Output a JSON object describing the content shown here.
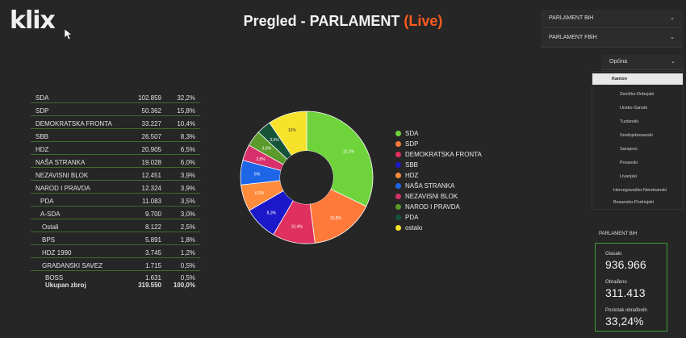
{
  "header": {
    "logo": "klix",
    "title_main": "Pregled - PARLAMENT ",
    "title_live": "(Live)"
  },
  "dropdowns": [
    {
      "label": "PARLAMENT BiH",
      "icon": "chevron-down-icon"
    },
    {
      "label": "PARLAMENT FBiH",
      "icon": "chevron-down-icon"
    },
    {
      "label": "Općina",
      "icon": "chevron-down-icon"
    }
  ],
  "opcina_options": [
    "Kanton",
    "Zeničko-Dobojski",
    "Unsko-Sanski",
    "Tuzlanski",
    "Srednjebosanski",
    "Sarajevo",
    "Posavski",
    "Livanjski",
    "Hercegovačko-Neretvanski",
    "Bosansko-Podrinjski"
  ],
  "table": {
    "rows": [
      {
        "party": "SDA",
        "votes": "102.859",
        "pct": "32,2%"
      },
      {
        "party": "SDP",
        "votes": "50.362",
        "pct": "15,8%"
      },
      {
        "party": "DEMOKRATSKA FRONTA",
        "votes": "33.227",
        "pct": "10,4%"
      },
      {
        "party": "SBB",
        "votes": "26.507",
        "pct": "8,3%"
      },
      {
        "party": "HDZ",
        "votes": "20.905",
        "pct": "6,5%"
      },
      {
        "party": "NAŠA STRANKA",
        "votes": "19.028",
        "pct": "6,0%"
      },
      {
        "party": "NEZAVISNI BLOK",
        "votes": "12.451",
        "pct": "3,9%"
      },
      {
        "party": "NAROD I PRAVDA",
        "votes": "12.324",
        "pct": "3,9%"
      },
      {
        "party": "PDA",
        "votes": "11.083",
        "pct": "3,5%"
      },
      {
        "party": "A-SDA",
        "votes": "9.700",
        "pct": "3,0%"
      },
      {
        "party": "Ostali",
        "votes": "8.122",
        "pct": "2,5%"
      },
      {
        "party": "BPS",
        "votes": "5.891",
        "pct": "1,8%"
      },
      {
        "party": "HDZ 1990",
        "votes": "3.745",
        "pct": "1,2%"
      },
      {
        "party": "GRAĐANSKI SAVEZ",
        "votes": "1.715",
        "pct": "0,5%"
      },
      {
        "party": "BOSS",
        "votes": "1.631",
        "pct": "0,5%"
      }
    ],
    "total": {
      "party": "Ukupan zbroj",
      "votes": "319.550",
      "pct": "100,0%"
    }
  },
  "chart_data": {
    "type": "pie",
    "donut": true,
    "categories": [
      "SDA",
      "SDP",
      "DEMOKRATSKA FRONTA",
      "SBB",
      "HDZ",
      "NAŠA STRANKA",
      "NEZAVISNI BLOK",
      "NAROD I PRAVDA",
      "PDA",
      "ostalo"
    ],
    "values": [
      32.2,
      15.8,
      10.4,
      8.3,
      6.5,
      6.0,
      3.9,
      3.9,
      3.5,
      9.5
    ],
    "slice_labels": [
      "32,2%",
      "15,8%",
      "10,4%",
      "8,3%",
      "6,5%",
      "6%",
      "3,9%",
      "3,9%",
      "3,5%",
      "10%"
    ],
    "colors": [
      "#6fd33c",
      "#ff7a3a",
      "#e0305f",
      "#1a18c8",
      "#ff8c3c",
      "#1e66e8",
      "#d8306a",
      "#5a9a2a",
      "#16543a",
      "#f6e22a"
    ],
    "legend_position": "right"
  },
  "stats": {
    "heading": "PARLAMENT BiH",
    "items": [
      {
        "label": "Glasalo",
        "value": "936.966"
      },
      {
        "label": "Obrađeno",
        "value": "311.413"
      },
      {
        "label": "Postotak obrađenih",
        "value": "33,24%"
      }
    ]
  }
}
